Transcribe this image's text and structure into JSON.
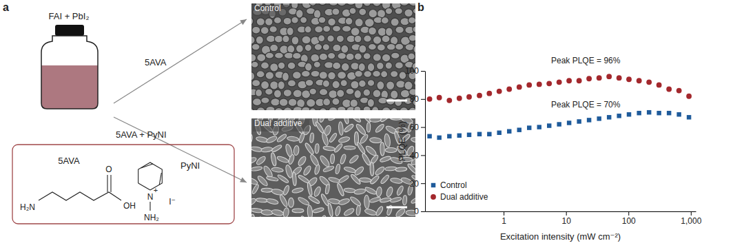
{
  "panel_a": {
    "label": "a",
    "reagents": "FAI + PbI₂",
    "arrows": [
      "5AVA",
      "5AVA + PyNI"
    ],
    "images": [
      "Control",
      "Dual additive"
    ],
    "molecules": [
      {
        "name": "5AVA",
        "atoms": [
          "H₂N",
          "O",
          "OH"
        ]
      },
      {
        "name": "PyNI",
        "atoms": [
          "N",
          "+",
          "NH₂",
          "I⁻"
        ]
      }
    ]
  },
  "chart_data": {
    "panel_label": "b",
    "type": "scatter",
    "x_label": "Excitation intensity (mW cm⁻²)",
    "y_label": "PLQE (%)",
    "log": "x",
    "xlim": [
      0.055,
      1200
    ],
    "xticks": [
      1,
      10,
      100,
      {
        "value": 1000,
        "label": "1,000"
      }
    ],
    "ylim": [
      0,
      100
    ],
    "yticks": [
      0,
      20,
      40,
      60,
      80,
      100
    ],
    "grid": false,
    "legend": "lower left",
    "x": [
      0.065,
      0.093,
      0.135,
      0.195,
      0.28,
      0.41,
      0.59,
      0.85,
      1.23,
      1.78,
      2.57,
      3.72,
      5.37,
      7.76,
      11.2,
      16.2,
      23.4,
      33.9,
      49,
      70.8,
      102,
      148,
      214,
      309,
      447,
      646,
      933
    ],
    "series": [
      {
        "name": "Control",
        "color": "#1f5b9b",
        "marker": "square",
        "values": [
          53.5,
          52.5,
          53.5,
          54,
          54.5,
          55,
          55,
          56,
          57,
          58,
          59.5,
          60,
          61,
          62,
          63,
          64,
          65,
          66,
          67,
          68,
          69,
          70,
          70.5,
          70,
          70,
          69,
          67
        ]
      },
      {
        "name": "Dual additive",
        "color": "#a3282d",
        "marker": "circle",
        "values": [
          80,
          81,
          79,
          80.5,
          81.5,
          82.5,
          84,
          85.5,
          87,
          88.5,
          90,
          90.5,
          91,
          92,
          93,
          93,
          94.5,
          95,
          96,
          95,
          94,
          93,
          92,
          90,
          87,
          86,
          82
        ]
      }
    ],
    "annotations": [
      "Peak PLQE = 96%",
      "Peak PLQE = 70%"
    ]
  }
}
